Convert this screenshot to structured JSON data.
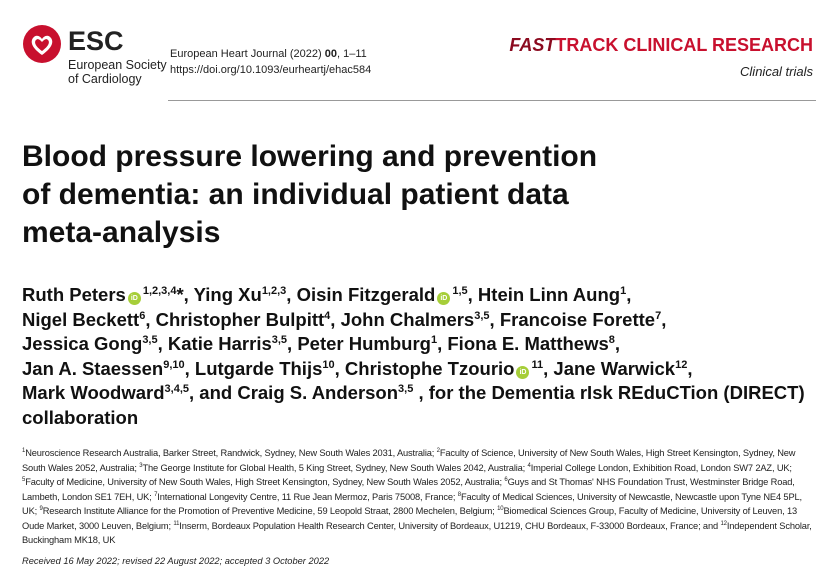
{
  "header": {
    "logo": {
      "acronym": "ESC",
      "name_line1": "European Society",
      "name_line2": "of Cardiology"
    },
    "journal": {
      "name": "European Heart Journal (2022)",
      "volume": "00",
      "pages": ", 1–11",
      "doi": "https://doi.org/10.1093/eurheartj/ehac584"
    },
    "section": {
      "fast": "FAST",
      "track": "TRACK CLINICAL RESEARCH",
      "subsection": "Clinical trials"
    }
  },
  "title_lines": [
    "Blood pressure lowering and prevention",
    "of dementia: an individual patient data",
    "meta-analysis"
  ],
  "authors": [
    [
      {
        "name": "Ruth Peters",
        "orcid": true,
        "sup": "1,2,3,4",
        "mark": "*",
        "sep": ","
      },
      {
        "name": "Ying Xu",
        "sup": "1,2,3",
        "sep": ","
      },
      {
        "name": "Oisin Fitzgerald",
        "orcid": true,
        "sup": "1,5",
        "sep": ","
      },
      {
        "name": "Htein Linn Aung",
        "sup": "1",
        "sep": ","
      }
    ],
    [
      {
        "name": "Nigel Beckett",
        "sup": "6",
        "sep": ","
      },
      {
        "name": "Christopher Bulpitt",
        "sup": "4",
        "sep": ","
      },
      {
        "name": "John Chalmers",
        "sup": "3,5",
        "sep": ","
      },
      {
        "name": "Francoise Forette",
        "sup": "7",
        "sep": ","
      }
    ],
    [
      {
        "name": "Jessica Gong",
        "sup": "3,5",
        "sep": ","
      },
      {
        "name": "Katie Harris",
        "sup": "3,5",
        "sep": ","
      },
      {
        "name": "Peter Humburg",
        "sup": "1",
        "sep": ","
      },
      {
        "name": "Fiona E. Matthews",
        "sup": "8",
        "sep": ","
      }
    ],
    [
      {
        "name": "Jan A. Staessen",
        "sup": "9,10",
        "sep": ","
      },
      {
        "name": "Lutgarde Thijs",
        "sup": "10",
        "sep": ","
      },
      {
        "name": "Christophe Tzourio",
        "orcid": true,
        "sup": "11",
        "sep": ","
      },
      {
        "name": "Jane Warwick",
        "sup": "12",
        "sep": ","
      }
    ],
    [
      {
        "name": "Mark Woodward",
        "sup": "3,4,5",
        "sep": ", and"
      },
      {
        "name": "Craig S. Anderson",
        "sup": "3,5"
      }
    ]
  ],
  "collaboration": ", for the Dementia rIsk REduCTion (DIRECT) collaboration",
  "affiliations": [
    {
      "num": "1",
      "text": "Neuroscience Research Australia, Barker Street, Randwick, Sydney, New South Wales 2031, Australia;"
    },
    {
      "num": "2",
      "text": "Faculty of Science, University of New South Wales, High Street Kensington, Sydney, New South Wales 2052, Australia;"
    },
    {
      "num": "3",
      "text": "The George Institute for Global Health, 5 King Street, Sydney, New South Wales 2042, Australia;"
    },
    {
      "num": "4",
      "text": "Imperial College London, Exhibition Road, London SW7 2AZ, UK;"
    },
    {
      "num": "5",
      "text": "Faculty of Medicine, University of New South Wales, High Street Kensington, Sydney, New South Wales 2052, Australia;"
    },
    {
      "num": "6",
      "text": "Guys and St Thomas' NHS Foundation Trust, Westminster Bridge Road, Lambeth, London SE1 7EH, UK;"
    },
    {
      "num": "7",
      "text": "International Longevity Centre, 11 Rue Jean Mermoz, Paris 75008, France;"
    },
    {
      "num": "8",
      "text": "Faculty of Medical Sciences, University of Newcastle, Newcastle upon Tyne NE4 5PL, UK;"
    },
    {
      "num": "9",
      "text": "Research Institute Alliance for the Promotion of Preventive Medicine, 59 Leopold Straat, 2800 Mechelen, Belgium;"
    },
    {
      "num": "10",
      "text": "Biomedical Sciences Group, Faculty of Medicine, University of Leuven, 13 Oude Market, 3000 Leuven, Belgium;"
    },
    {
      "num": "11",
      "text": "Inserm, Bordeaux Population Health Research Center, University of Bordeaux, U1219, CHU Bordeaux, F-33000 Bordeaux, France; and"
    },
    {
      "num": "12",
      "text": "Independent Scholar, Buckingham MK18, UK"
    }
  ],
  "received": "Received 16 May 2022; revised 22 August 2022; accepted 3 October 2022"
}
